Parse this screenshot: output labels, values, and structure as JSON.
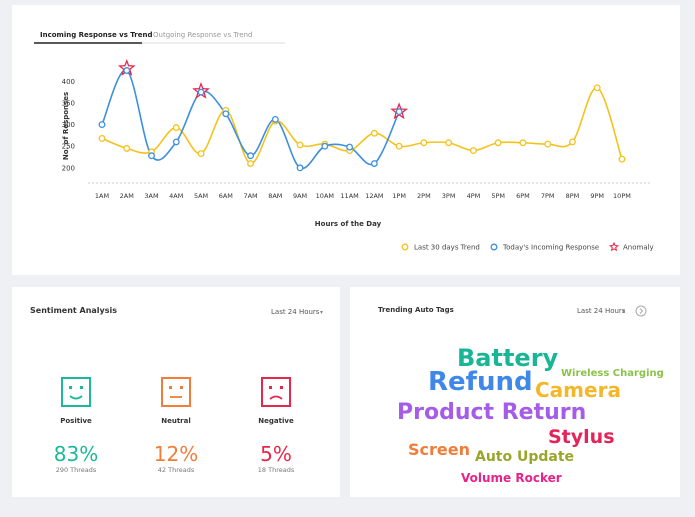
{
  "tabs": [
    "Incoming Response vs Trend",
    "Outgoing Response vs Trend"
  ],
  "chart_data": {
    "type": "line",
    "x_label": "Hours of the Day",
    "y_label": "No. of Responses",
    "categories": [
      "1AM",
      "2AM",
      "3AM",
      "4AM",
      "5AM",
      "6AM",
      "7AM",
      "8AM",
      "9AM",
      "10AM",
      "11AM",
      "12AM",
      "1PM",
      "2PM",
      "3PM",
      "4PM",
      "5PM",
      "6PM",
      "7PM",
      "8PM",
      "9PM",
      "10PM"
    ],
    "series": [
      {
        "name": "Last 30 days Trend",
        "color": "#f5c21b",
        "marker": "circle",
        "values": [
          268,
          245,
          237,
          293,
          233,
          333,
          210,
          308,
          253,
          255,
          240,
          280,
          250,
          258,
          258,
          240,
          258,
          258,
          255,
          260,
          385,
          220
        ]
      },
      {
        "name": "Today's Incoming Response",
        "color": "#3d8fe0",
        "marker": "circle",
        "values": [
          300,
          425,
          228,
          260,
          375,
          325,
          228,
          312,
          200,
          250,
          248,
          210,
          330,
          null,
          null,
          null,
          null,
          null,
          null,
          null,
          null,
          null
        ]
      },
      {
        "name": "Anomaly",
        "color": "#e8264a",
        "marker": "star",
        "values": [
          null,
          430,
          null,
          null,
          377,
          null,
          null,
          null,
          null,
          null,
          null,
          null,
          330,
          null,
          null,
          null,
          null,
          null,
          null,
          null,
          null,
          null
        ]
      }
    ],
    "ylim": [
      165,
      440
    ],
    "yticks": [
      200,
      250,
      300,
      350,
      400
    ],
    "grid": false,
    "legend": "bottom-right"
  },
  "sentiment": {
    "title": "Sentiment Analysis",
    "period": "Last 24 Hours",
    "items": [
      {
        "label": "Positive",
        "percent": "83%",
        "threads": "290 Threads",
        "color": "#1bb99a"
      },
      {
        "label": "Neutral",
        "percent": "12%",
        "threads": "42 Threads",
        "color": "#f07d3a"
      },
      {
        "label": "Negative",
        "percent": "5%",
        "threads": "18 Threads",
        "color": "#e8264a"
      }
    ]
  },
  "tags": {
    "title": "Trending Auto Tags",
    "period": "Last 24 Hours",
    "words": [
      {
        "text": "Battery",
        "color": "#18b597"
      },
      {
        "text": "Wireless Charging",
        "color": "#8bc34a"
      },
      {
        "text": "Refund",
        "color": "#3f87e8"
      },
      {
        "text": "Camera",
        "color": "#f3b82a"
      },
      {
        "text": "Product Return",
        "color": "#a55de8"
      },
      {
        "text": "Stylus",
        "color": "#e3245a"
      },
      {
        "text": "Screen",
        "color": "#f07d3a"
      },
      {
        "text": "Auto Update",
        "color": "#9aa52c"
      },
      {
        "text": "Volume Rocker",
        "color": "#e8228a"
      }
    ]
  }
}
